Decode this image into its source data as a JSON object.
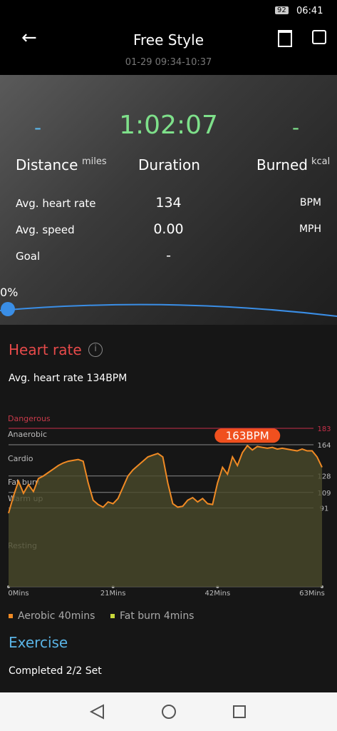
{
  "status_bar": {
    "battery": "92",
    "time": "06:41"
  },
  "header": {
    "title": "Free Style",
    "subtitle": "01-29 09:34-10:37"
  },
  "summary": {
    "distance_value": "-",
    "duration_value": "1:02:07",
    "burned_value": "-",
    "distance_label": "Distance",
    "distance_unit": "miles",
    "duration_label": "Duration",
    "burned_label": "Burned",
    "burned_unit": "kcal"
  },
  "stats": [
    {
      "label": "Avg. heart rate",
      "value": "134",
      "unit": "BPM"
    },
    {
      "label": "Avg. speed",
      "value": "0.00",
      "unit": "MPH"
    },
    {
      "label": "Goal",
      "value": "-"
    }
  ],
  "progress": "0%",
  "heart_rate": {
    "title": "Heart rate",
    "average": "Avg. heart rate 134BPM",
    "zones": [
      "Dangerous",
      "Anaerobic",
      "Cardio",
      "Fat burn",
      "Warm up",
      "Resting"
    ],
    "chart_data": {
      "type": "line",
      "color": "#f08a24",
      "x": [
        0,
        1,
        2,
        3,
        4,
        5,
        6,
        7,
        8,
        9,
        10,
        11,
        12,
        13,
        14,
        15,
        16,
        17,
        18,
        19,
        20,
        21,
        22,
        23,
        24,
        25,
        26,
        27,
        28,
        29,
        30,
        31,
        32,
        33,
        34,
        35,
        36,
        37,
        38,
        39,
        40,
        41,
        42,
        43,
        44,
        45,
        46,
        47,
        48,
        49,
        50,
        51,
        52,
        53,
        54,
        55,
        56,
        57,
        58,
        59,
        60,
        61,
        62,
        63
      ],
      "values": [
        85,
        105,
        122,
        108,
        118,
        110,
        125,
        128,
        132,
        136,
        140,
        143,
        145,
        146,
        147,
        145,
        120,
        100,
        95,
        92,
        98,
        96,
        102,
        115,
        128,
        135,
        140,
        145,
        150,
        152,
        154,
        150,
        120,
        96,
        92,
        93,
        100,
        103,
        98,
        102,
        96,
        95,
        120,
        138,
        130,
        150,
        140,
        155,
        163,
        158,
        162,
        161,
        160,
        161,
        159,
        160,
        159,
        158,
        157,
        159,
        157,
        157,
        150,
        138
      ],
      "xlim": [
        0,
        63
      ],
      "ylim": [
        0,
        183
      ],
      "xticks": [
        {
          "value": 0,
          "label": "0Mins"
        },
        {
          "value": 21,
          "label": "21Mins"
        },
        {
          "value": 42,
          "label": "42Mins"
        },
        {
          "value": 63,
          "label": "63Mins"
        }
      ],
      "yticks": [
        91,
        109,
        128,
        164,
        183
      ],
      "peak": {
        "label": "163BPM",
        "x": 48,
        "value": 163
      }
    }
  },
  "legend": [
    {
      "name": "Aerobic 40mins",
      "color": "#f08a24"
    },
    {
      "name": "Fat burn 4mins",
      "color": "#c8d83a"
    }
  ],
  "exercise": {
    "title": "Exercise",
    "completed": "Completed 2/2 Set"
  }
}
